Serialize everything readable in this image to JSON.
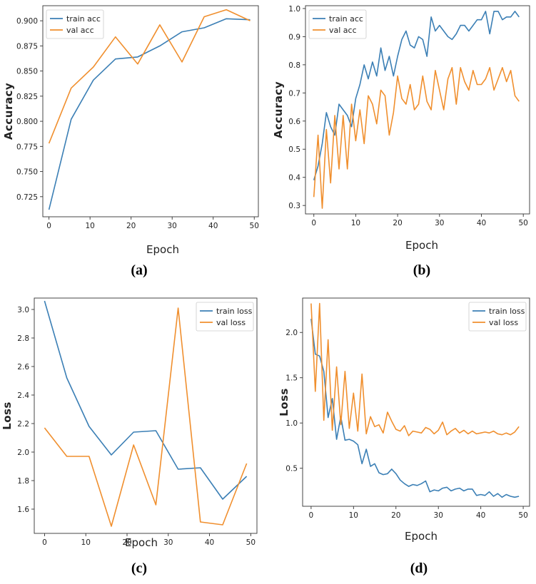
{
  "captions": [
    "(a)",
    "(b)",
    "(c)",
    "(d)"
  ],
  "colors": {
    "train": "#3b7fb5",
    "val": "#f08f2e"
  },
  "chart_data": [
    {
      "type": "line",
      "xlabel": "Epoch",
      "ylabel": "Accuracy",
      "xlim": [
        -1.5,
        51
      ],
      "ylim": [
        0.705,
        0.915
      ],
      "xticks": [
        0,
        10,
        20,
        30,
        40,
        50
      ],
      "yticks": [
        0.725,
        0.75,
        0.775,
        0.8,
        0.825,
        0.85,
        0.875,
        0.9
      ],
      "ytick_labels": [
        "0.725",
        "0.750",
        "0.775",
        "0.800",
        "0.825",
        "0.850",
        "0.875",
        "0.900"
      ],
      "legend": {
        "position": "top-left"
      },
      "series": [
        {
          "name": "train acc",
          "color": "train",
          "x": [
            0,
            5.4,
            10.8,
            16.2,
            21.6,
            27,
            32.4,
            37.8,
            43.2,
            49
          ],
          "y": [
            0.712,
            0.802,
            0.841,
            0.862,
            0.864,
            0.875,
            0.889,
            0.893,
            0.902,
            0.901
          ]
        },
        {
          "name": "val acc",
          "color": "val",
          "x": [
            0,
            5.4,
            10.8,
            16.2,
            21.6,
            27,
            32.4,
            37.8,
            43.2,
            49
          ],
          "y": [
            0.778,
            0.833,
            0.854,
            0.884,
            0.857,
            0.896,
            0.859,
            0.904,
            0.911,
            0.9
          ]
        }
      ]
    },
    {
      "type": "line",
      "xlabel": "Epoch",
      "ylabel": "Accuracy",
      "xlim": [
        -2,
        51.5
      ],
      "ylim": [
        0.27,
        1.01
      ],
      "xticks": [
        0,
        10,
        20,
        30,
        40,
        50
      ],
      "yticks": [
        0.3,
        0.4,
        0.5,
        0.6,
        0.7,
        0.8,
        0.9,
        1.0
      ],
      "ytick_labels": [
        "0.3",
        "0.4",
        "0.5",
        "0.6",
        "0.7",
        "0.8",
        "0.9",
        "1.0"
      ],
      "legend": {
        "position": "top-left"
      },
      "series": [
        {
          "name": "train acc",
          "color": "train",
          "x": [
            0,
            1,
            2,
            3,
            4,
            5,
            6,
            7,
            8,
            9,
            10,
            11,
            12,
            13,
            14,
            15,
            16,
            17,
            18,
            19,
            20,
            21,
            22,
            23,
            24,
            25,
            26,
            27,
            28,
            29,
            30,
            31,
            32,
            33,
            34,
            35,
            36,
            37,
            38,
            39,
            40,
            41,
            42,
            43,
            44,
            45,
            46,
            47,
            48,
            49
          ],
          "y": [
            0.39,
            0.44,
            0.52,
            0.63,
            0.58,
            0.55,
            0.66,
            0.64,
            0.62,
            0.58,
            0.68,
            0.73,
            0.8,
            0.75,
            0.81,
            0.76,
            0.86,
            0.78,
            0.83,
            0.76,
            0.83,
            0.89,
            0.92,
            0.87,
            0.86,
            0.9,
            0.89,
            0.83,
            0.97,
            0.92,
            0.94,
            0.92,
            0.9,
            0.89,
            0.91,
            0.94,
            0.94,
            0.92,
            0.94,
            0.96,
            0.96,
            0.99,
            0.91,
            0.99,
            0.99,
            0.96,
            0.97,
            0.97,
            0.99,
            0.97
          ]
        },
        {
          "name": "val acc",
          "color": "val",
          "x": [
            0,
            1,
            2,
            3,
            4,
            5,
            6,
            7,
            8,
            9,
            10,
            11,
            12,
            13,
            14,
            15,
            16,
            17,
            18,
            19,
            20,
            21,
            22,
            23,
            24,
            25,
            26,
            27,
            28,
            29,
            30,
            31,
            32,
            33,
            34,
            35,
            36,
            37,
            38,
            39,
            40,
            41,
            42,
            43,
            44,
            45,
            46,
            47,
            48,
            49
          ],
          "y": [
            0.33,
            0.55,
            0.29,
            0.57,
            0.38,
            0.62,
            0.43,
            0.62,
            0.43,
            0.66,
            0.53,
            0.64,
            0.52,
            0.69,
            0.66,
            0.59,
            0.71,
            0.69,
            0.55,
            0.63,
            0.76,
            0.68,
            0.66,
            0.73,
            0.64,
            0.66,
            0.76,
            0.67,
            0.64,
            0.78,
            0.71,
            0.64,
            0.75,
            0.79,
            0.66,
            0.79,
            0.74,
            0.71,
            0.78,
            0.73,
            0.73,
            0.75,
            0.79,
            0.71,
            0.75,
            0.79,
            0.74,
            0.78,
            0.69,
            0.67
          ]
        }
      ]
    },
    {
      "type": "line",
      "xlabel": "Epoch",
      "ylabel": "Loss",
      "xlim": [
        -2.5,
        51.5
      ],
      "ylim": [
        1.43,
        3.08
      ],
      "xticks": [
        0,
        10,
        20,
        30,
        40,
        50
      ],
      "yticks": [
        1.6,
        1.8,
        2.0,
        2.2,
        2.4,
        2.6,
        2.8,
        3.0
      ],
      "ytick_labels": [
        "1.6",
        "1.8",
        "2.0",
        "2.2",
        "2.4",
        "2.6",
        "2.8",
        "3.0"
      ],
      "legend": {
        "position": "top-right"
      },
      "series": [
        {
          "name": "train loss",
          "color": "train",
          "x": [
            0,
            5.4,
            10.8,
            16.2,
            21.6,
            27,
            32.4,
            37.8,
            43.2,
            49
          ],
          "y": [
            3.06,
            2.52,
            2.18,
            1.98,
            2.14,
            2.15,
            1.88,
            1.89,
            1.67,
            1.83
          ]
        },
        {
          "name": "val loss",
          "color": "val",
          "x": [
            0,
            5.4,
            10.8,
            16.2,
            21.6,
            27,
            32.4,
            37.8,
            43.2,
            49
          ],
          "y": [
            2.17,
            1.97,
            1.97,
            1.48,
            2.05,
            1.63,
            3.01,
            1.51,
            1.49,
            1.92
          ]
        }
      ]
    },
    {
      "type": "line",
      "xlabel": "Epoch",
      "ylabel": "Loss",
      "xlim": [
        -2,
        51.5
      ],
      "ylim": [
        0.08,
        2.38
      ],
      "xticks": [
        0,
        10,
        20,
        30,
        40,
        50
      ],
      "yticks": [
        0.5,
        1.0,
        1.5,
        2.0
      ],
      "ytick_labels": [
        "0.5",
        "1.0",
        "1.5",
        "2.0"
      ],
      "legend": {
        "position": "top-right"
      },
      "series": [
        {
          "name": "train loss",
          "color": "train",
          "x": [
            0,
            1,
            2,
            3,
            4,
            5,
            6,
            7,
            8,
            9,
            10,
            11,
            12,
            13,
            14,
            15,
            16,
            17,
            18,
            19,
            20,
            21,
            22,
            23,
            24,
            25,
            26,
            27,
            28,
            29,
            30,
            31,
            32,
            33,
            34,
            35,
            36,
            37,
            38,
            39,
            40,
            41,
            42,
            43,
            44,
            45,
            46,
            47,
            48,
            49
          ],
          "y": [
            2.15,
            1.76,
            1.74,
            1.57,
            1.06,
            1.27,
            0.82,
            1.07,
            0.81,
            0.82,
            0.8,
            0.76,
            0.55,
            0.71,
            0.52,
            0.55,
            0.45,
            0.43,
            0.44,
            0.49,
            0.44,
            0.37,
            0.33,
            0.3,
            0.32,
            0.31,
            0.33,
            0.36,
            0.24,
            0.26,
            0.25,
            0.28,
            0.29,
            0.25,
            0.27,
            0.28,
            0.25,
            0.27,
            0.27,
            0.2,
            0.21,
            0.2,
            0.24,
            0.19,
            0.22,
            0.18,
            0.21,
            0.19,
            0.18,
            0.19
          ]
        },
        {
          "name": "val loss",
          "color": "val",
          "x": [
            0,
            1,
            2,
            3,
            4,
            5,
            6,
            7,
            8,
            9,
            10,
            11,
            12,
            13,
            14,
            15,
            16,
            17,
            18,
            19,
            20,
            21,
            22,
            23,
            24,
            25,
            26,
            27,
            28,
            29,
            30,
            31,
            32,
            33,
            34,
            35,
            36,
            37,
            38,
            39,
            40,
            41,
            42,
            43,
            44,
            45,
            46,
            47,
            48,
            49
          ],
          "y": [
            2.32,
            1.35,
            2.32,
            1.03,
            1.92,
            0.92,
            1.62,
            0.98,
            1.57,
            0.94,
            1.33,
            0.91,
            1.54,
            0.88,
            1.07,
            0.96,
            0.98,
            0.89,
            1.12,
            1.02,
            0.93,
            0.91,
            0.97,
            0.86,
            0.91,
            0.9,
            0.89,
            0.95,
            0.93,
            0.88,
            0.92,
            1.01,
            0.87,
            0.91,
            0.94,
            0.89,
            0.92,
            0.88,
            0.91,
            0.88,
            0.89,
            0.9,
            0.89,
            0.91,
            0.88,
            0.87,
            0.89,
            0.87,
            0.9,
            0.96
          ]
        }
      ]
    }
  ]
}
